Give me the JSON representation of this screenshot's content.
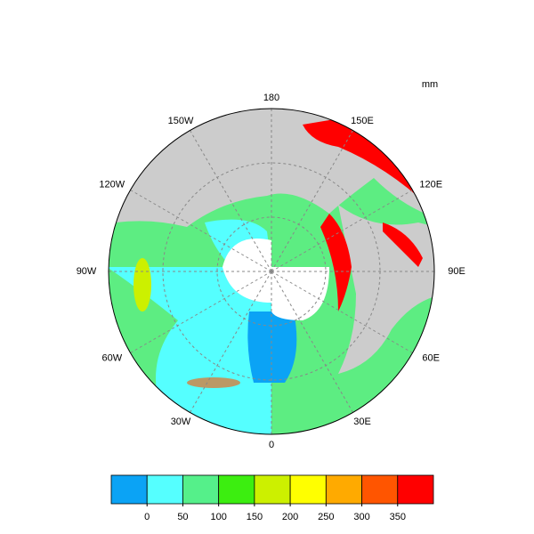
{
  "unit": "mm",
  "longitude_labels": [
    "180",
    "150E",
    "120E",
    "90E",
    "60E",
    "30E",
    "0",
    "30W",
    "60W",
    "90W",
    "120W",
    "150W"
  ],
  "colorbar": {
    "levels": [
      0,
      50,
      100,
      150,
      200,
      250,
      300,
      350
    ],
    "colors": [
      "#0ba3f5",
      "#55ffff",
      "#55f08a",
      "#3cee10",
      "#ccf000",
      "#ffff00",
      "#ffaa00",
      "#ff5500",
      "#ff0000"
    ]
  }
}
